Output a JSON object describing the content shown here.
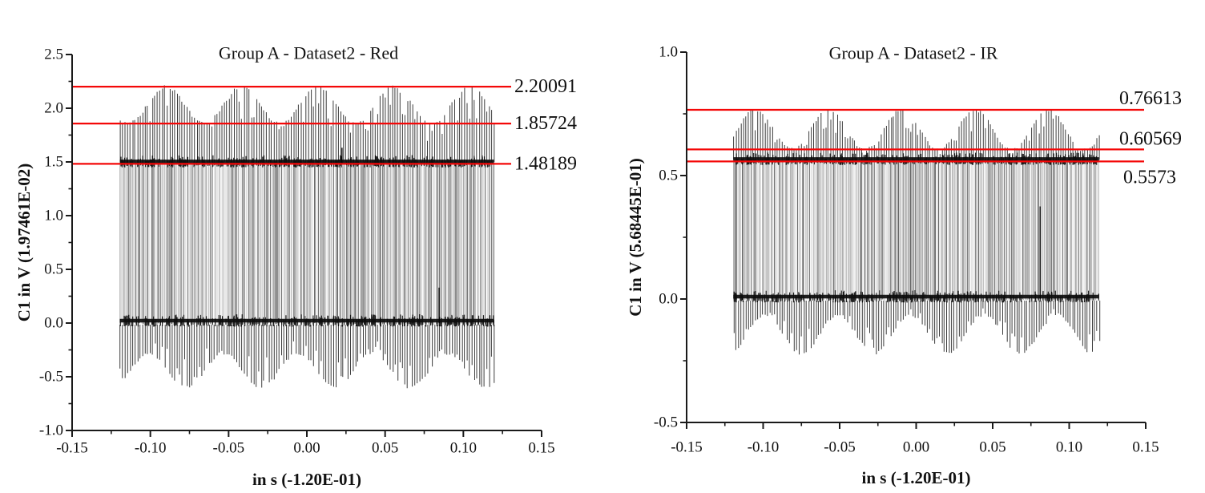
{
  "figure": {
    "background": "#ffffff",
    "description": "Two pulse-train oscilloscope plots with red reference lines"
  },
  "styles": {
    "ref_line_color": "#f40808",
    "axis_color": "#1a1a1a",
    "signal_color": "#222222",
    "band_color": "#000000",
    "text_color": "#111111"
  },
  "chart_data": [
    {
      "type": "line",
      "title": "Group A - Dataset2 - Red",
      "xlabel": "in s (-1.20E-01)",
      "ylabel": "C1 in V (1.97461E-02)",
      "xlim": [
        -0.15,
        0.15
      ],
      "ylim": [
        -1.0,
        2.5
      ],
      "grid": false,
      "legend": null,
      "x_ticks": [
        {
          "v": -0.15,
          "label": "-0.15"
        },
        {
          "v": -0.1,
          "label": "-0.10"
        },
        {
          "v": -0.05,
          "label": "-0.05"
        },
        {
          "v": 0.0,
          "label": "0.00"
        },
        {
          "v": 0.05,
          "label": "0.05"
        },
        {
          "v": 0.1,
          "label": "0.10"
        },
        {
          "v": 0.15,
          "label": "0.15"
        }
      ],
      "y_ticks": [
        {
          "v": -1.0,
          "label": "-1.0"
        },
        {
          "v": -0.5,
          "label": "-0.5"
        },
        {
          "v": 0.0,
          "label": "0.0"
        },
        {
          "v": 0.5,
          "label": "0.5"
        },
        {
          "v": 1.0,
          "label": "1.0"
        },
        {
          "v": 1.5,
          "label": "1.5"
        },
        {
          "v": 2.0,
          "label": "2.0"
        },
        {
          "v": 2.5,
          "label": "2.5"
        }
      ],
      "reference_lines": [
        {
          "y": 2.20091,
          "label": "2.20091",
          "label_dy": 0,
          "label_dx": 0
        },
        {
          "y": 1.85724,
          "label": "1.85724",
          "label_dy": 0,
          "label_dx": 0
        },
        {
          "y": 1.48189,
          "label": "1.48189",
          "label_dy": 0,
          "label_dx": 0
        }
      ],
      "signal": {
        "kind": "amplitude-modulated pulse train",
        "x_start": -0.1195,
        "x_end": 0.1195,
        "low_level": 0.0,
        "high_level": 1.48189,
        "top_envelope": {
          "max": 2.20091,
          "min": 1.85724,
          "period": 0.0485,
          "first_peak_x": -0.09
        },
        "bottom_envelope": {
          "min": -0.6,
          "max": -0.28,
          "period": 0.0477,
          "first_valley_x": -0.077
        },
        "pulse_count": 152,
        "body_line_count": 330,
        "outliers": [
          {
            "x": 0.0225,
            "from": 1.48189,
            "to": 1.632
          },
          {
            "x": 0.0845,
            "from": 0.0,
            "to": 0.33
          }
        ]
      }
    },
    {
      "type": "line",
      "title": "Group A - Dataset2 - IR",
      "xlabel": "in s (-1.20E-01)",
      "ylabel": "C1 in V (5.68445E-01)",
      "xlim": [
        -0.15,
        0.15
      ],
      "ylim": [
        -0.5,
        1.0
      ],
      "grid": false,
      "legend": null,
      "x_ticks": [
        {
          "v": -0.15,
          "label": "-0.15"
        },
        {
          "v": -0.1,
          "label": "-0.10"
        },
        {
          "v": -0.05,
          "label": "-0.05"
        },
        {
          "v": 0.0,
          "label": "0.00"
        },
        {
          "v": 0.05,
          "label": "0.05"
        },
        {
          "v": 0.1,
          "label": "0.10"
        },
        {
          "v": 0.15,
          "label": "0.15"
        }
      ],
      "y_ticks": [
        {
          "v": -0.5,
          "label": "-0.5"
        },
        {
          "v": 0.0,
          "label": "0.0"
        },
        {
          "v": 0.5,
          "label": "0.5"
        },
        {
          "v": 1.0,
          "label": "1.0"
        }
      ],
      "reference_lines": [
        {
          "y": 0.76613,
          "label": "0.76613",
          "label_dy": -14,
          "label_dx": 0
        },
        {
          "y": 0.60569,
          "label": "0.60569",
          "label_dy": -13,
          "label_dx": 0
        },
        {
          "y": 0.5573,
          "label": "0.5573",
          "label_dy": 20,
          "label_dx": 5
        }
      ],
      "signal": {
        "kind": "amplitude-modulated pulse train",
        "x_start": -0.1195,
        "x_end": 0.1195,
        "low_level": 0.0,
        "high_level": 0.5573,
        "top_envelope": {
          "max": 0.76613,
          "min": 0.60569,
          "period": 0.0478,
          "first_peak_x": -0.105
        },
        "bottom_envelope": {
          "min": -0.22,
          "max": -0.065,
          "period": 0.0477,
          "first_valley_x": -0.075
        },
        "pulse_count": 152,
        "body_line_count": 330,
        "outliers": [
          {
            "x": 0.081,
            "from": 0.0,
            "to": 0.375
          }
        ]
      }
    }
  ]
}
